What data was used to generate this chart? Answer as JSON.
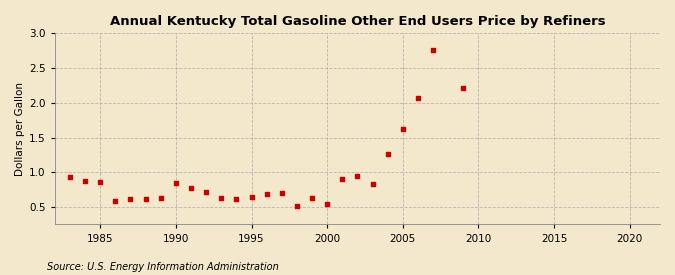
{
  "title": "Annual Kentucky Total Gasoline Other End Users Price by Refiners",
  "ylabel": "Dollars per Gallon",
  "source": "Source: U.S. Energy Information Administration",
  "background_color": "#f3e8cc",
  "marker_color": "#cc0000",
  "plot_years": [
    1983,
    1984,
    1985,
    1986,
    1987,
    1988,
    1989,
    1990,
    1991,
    1992,
    1993,
    1994,
    1995,
    1996,
    1997,
    1998,
    1999,
    2000,
    2001,
    2002,
    2003,
    2004,
    2005,
    2006,
    2007,
    2009
  ],
  "plot_values": [
    0.93,
    0.88,
    0.86,
    0.59,
    0.62,
    0.62,
    0.63,
    0.85,
    0.78,
    0.72,
    0.63,
    0.62,
    0.65,
    0.69,
    0.7,
    0.52,
    0.63,
    0.54,
    0.91,
    0.95,
    0.83,
    1.26,
    1.63,
    2.07,
    2.76,
    2.22
  ],
  "xlim": [
    1982,
    2022
  ],
  "ylim": [
    0.25,
    3.0
  ],
  "xticks": [
    1985,
    1990,
    1995,
    2000,
    2005,
    2010,
    2015,
    2020
  ],
  "yticks": [
    0.5,
    1.0,
    1.5,
    2.0,
    2.5,
    3.0
  ],
  "title_fontsize": 9.5,
  "axis_fontsize": 7.5,
  "source_fontsize": 7
}
